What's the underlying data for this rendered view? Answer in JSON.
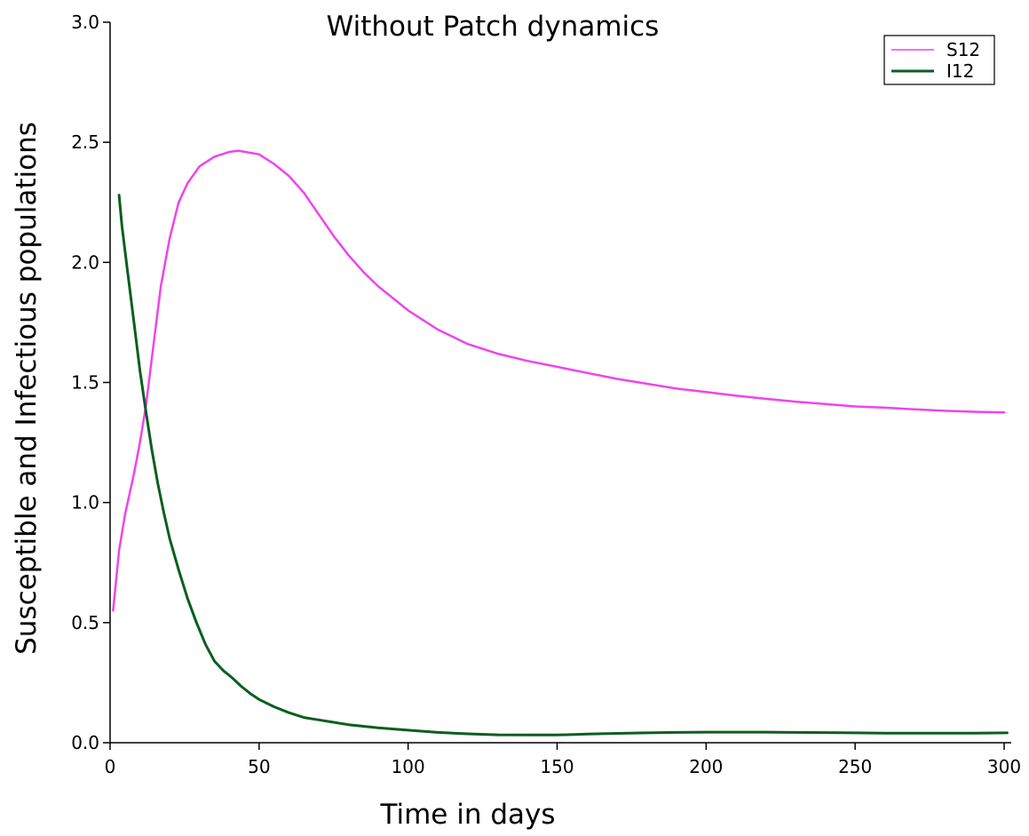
{
  "chart_data": {
    "type": "line",
    "title": "Without Patch dynamics",
    "xlabel": "Time in days",
    "ylabel": "Susceptible and Infectious populations",
    "xlim": [
      0,
      300
    ],
    "ylim": [
      0,
      3.0
    ],
    "xticks": [
      0,
      50,
      100,
      150,
      200,
      250,
      300
    ],
    "xtick_labels": [
      "0",
      "50",
      "100",
      "150",
      "200",
      "250",
      "300"
    ],
    "yticks": [
      0,
      0.5,
      1.0,
      1.5,
      2.0,
      2.5,
      3.0
    ],
    "ytick_labels": [
      "0.0",
      "0.5",
      "1.0",
      "1.5",
      "2.0",
      "2.5",
      "3.0"
    ],
    "grid": false,
    "legend_position": "top-right",
    "series": [
      {
        "name": "S12",
        "color": "#ee44ee",
        "x": [
          1,
          3,
          5,
          8,
          10,
          12,
          14,
          17,
          20,
          23,
          26,
          30,
          35,
          40,
          43,
          50,
          55,
          60,
          65,
          70,
          75,
          80,
          85,
          90,
          100,
          110,
          120,
          130,
          140,
          150,
          160,
          170,
          180,
          190,
          200,
          210,
          220,
          230,
          240,
          250,
          260,
          270,
          280,
          290,
          300
        ],
        "y": [
          0.55,
          0.8,
          0.95,
          1.12,
          1.25,
          1.4,
          1.6,
          1.9,
          2.1,
          2.25,
          2.33,
          2.4,
          2.44,
          2.46,
          2.465,
          2.45,
          2.41,
          2.36,
          2.29,
          2.2,
          2.11,
          2.03,
          1.96,
          1.9,
          1.8,
          1.72,
          1.66,
          1.62,
          1.59,
          1.565,
          1.54,
          1.515,
          1.495,
          1.475,
          1.46,
          1.445,
          1.432,
          1.42,
          1.41,
          1.4,
          1.395,
          1.388,
          1.382,
          1.378,
          1.375
        ]
      },
      {
        "name": "I12",
        "color": "#0b5e1e",
        "x": [
          3,
          4,
          6,
          8,
          10,
          12,
          14,
          16,
          18,
          20,
          23,
          26,
          29,
          32,
          35,
          38,
          41,
          44,
          47,
          50,
          55,
          60,
          65,
          70,
          75,
          80,
          90,
          100,
          110,
          120,
          130,
          140,
          150,
          160,
          170,
          180,
          190,
          200,
          210,
          220,
          230,
          240,
          250,
          260,
          270,
          280,
          290,
          301
        ],
        "y": [
          2.28,
          2.15,
          1.95,
          1.75,
          1.55,
          1.38,
          1.22,
          1.08,
          0.96,
          0.85,
          0.72,
          0.6,
          0.5,
          0.41,
          0.34,
          0.3,
          0.27,
          0.235,
          0.205,
          0.18,
          0.15,
          0.125,
          0.105,
          0.095,
          0.085,
          0.075,
          0.062,
          0.052,
          0.043,
          0.037,
          0.033,
          0.032,
          0.032,
          0.036,
          0.039,
          0.041,
          0.043,
          0.044,
          0.044,
          0.044,
          0.043,
          0.042,
          0.041,
          0.04,
          0.04,
          0.04,
          0.04,
          0.041
        ]
      }
    ]
  }
}
